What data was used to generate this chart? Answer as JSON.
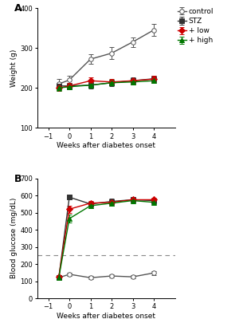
{
  "panel_A": {
    "title": "A",
    "ylabel": "Weight (g)",
    "xlabel": "Weeks after diabetes onset",
    "xlim": [
      -1.5,
      5
    ],
    "ylim": [
      100,
      400
    ],
    "yticks": [
      100,
      200,
      300,
      400
    ],
    "xticks": [
      -1,
      0,
      1,
      2,
      3,
      4
    ],
    "series": {
      "control": {
        "x": [
          -0.5,
          0,
          1,
          2,
          3,
          4
        ],
        "y": [
          210,
          220,
          272,
          287,
          315,
          345
        ],
        "yerr": [
          12,
          10,
          12,
          15,
          12,
          15
        ],
        "color": "#555555",
        "marker": "o",
        "markerfacecolor": "white",
        "markeredgecolor": "#555555",
        "label": "control"
      },
      "STZ": {
        "x": [
          -0.5,
          0,
          1,
          2,
          3,
          4
        ],
        "y": [
          205,
          205,
          207,
          213,
          218,
          223
        ],
        "yerr": [
          8,
          7,
          8,
          8,
          8,
          8
        ],
        "color": "#333333",
        "marker": "s",
        "markerfacecolor": "#333333",
        "markeredgecolor": "#333333",
        "label": "STZ"
      },
      "low": {
        "x": [
          -0.5,
          0,
          1,
          2,
          3,
          4
        ],
        "y": [
          200,
          205,
          218,
          215,
          218,
          222
        ],
        "yerr": [
          8,
          7,
          8,
          8,
          7,
          8
        ],
        "color": "#cc0000",
        "marker": "D",
        "markerfacecolor": "#cc0000",
        "markeredgecolor": "#cc0000",
        "label": "+ low"
      },
      "high": {
        "x": [
          -0.5,
          0,
          1,
          2,
          3,
          4
        ],
        "y": [
          200,
          203,
          207,
          213,
          215,
          218
        ],
        "yerr": [
          7,
          6,
          7,
          7,
          6,
          6
        ],
        "color": "#007700",
        "marker": "^",
        "markerfacecolor": "#007700",
        "markeredgecolor": "#007700",
        "label": "+ high"
      }
    }
  },
  "panel_B": {
    "title": "B",
    "ylabel": "Blood glucose (mg/dL)",
    "xlabel": "Weeks after diabetes onset",
    "xlim": [
      -1.5,
      5
    ],
    "ylim": [
      0,
      700
    ],
    "yticks": [
      0,
      100,
      200,
      300,
      400,
      500,
      600,
      700
    ],
    "xticks": [
      -1,
      0,
      1,
      2,
      3,
      4
    ],
    "dashed_line_y": 250,
    "series": {
      "control": {
        "x": [
          -0.5,
          0,
          1,
          2,
          3,
          4
        ],
        "y": [
          120,
          140,
          120,
          130,
          125,
          148
        ],
        "yerr": [
          8,
          10,
          8,
          8,
          8,
          12
        ],
        "color": "#555555",
        "marker": "o",
        "markerfacecolor": "white",
        "markeredgecolor": "#555555",
        "label": "control"
      },
      "STZ": {
        "x": [
          -0.5,
          0,
          1,
          2,
          3,
          4
        ],
        "y": [
          120,
          590,
          550,
          565,
          575,
          570
        ],
        "yerr": [
          8,
          15,
          15,
          15,
          12,
          12
        ],
        "color": "#333333",
        "marker": "s",
        "markerfacecolor": "#333333",
        "markeredgecolor": "#333333",
        "label": "STZ"
      },
      "low": {
        "x": [
          -0.5,
          0,
          1,
          2,
          3,
          4
        ],
        "y": [
          125,
          520,
          555,
          560,
          575,
          575
        ],
        "yerr": [
          8,
          20,
          15,
          15,
          12,
          12
        ],
        "color": "#cc0000",
        "marker": "D",
        "markerfacecolor": "#cc0000",
        "markeredgecolor": "#cc0000",
        "label": "+ low"
      },
      "high": {
        "x": [
          -0.5,
          0,
          1,
          2,
          3,
          4
        ],
        "y": [
          120,
          465,
          540,
          555,
          570,
          560
        ],
        "yerr": [
          8,
          25,
          15,
          15,
          12,
          12
        ],
        "color": "#007700",
        "marker": "^",
        "markerfacecolor": "#007700",
        "markeredgecolor": "#007700",
        "label": "+ high"
      }
    }
  },
  "series_order": [
    "control",
    "STZ",
    "low",
    "high"
  ],
  "background_color": "#ffffff",
  "markersize": 4,
  "linewidth": 1.0,
  "capsize": 2,
  "elinewidth": 0.7,
  "legend_fontsize": 6.5,
  "label_fontsize": 6.5,
  "tick_fontsize": 6,
  "panel_label_fontsize": 9
}
